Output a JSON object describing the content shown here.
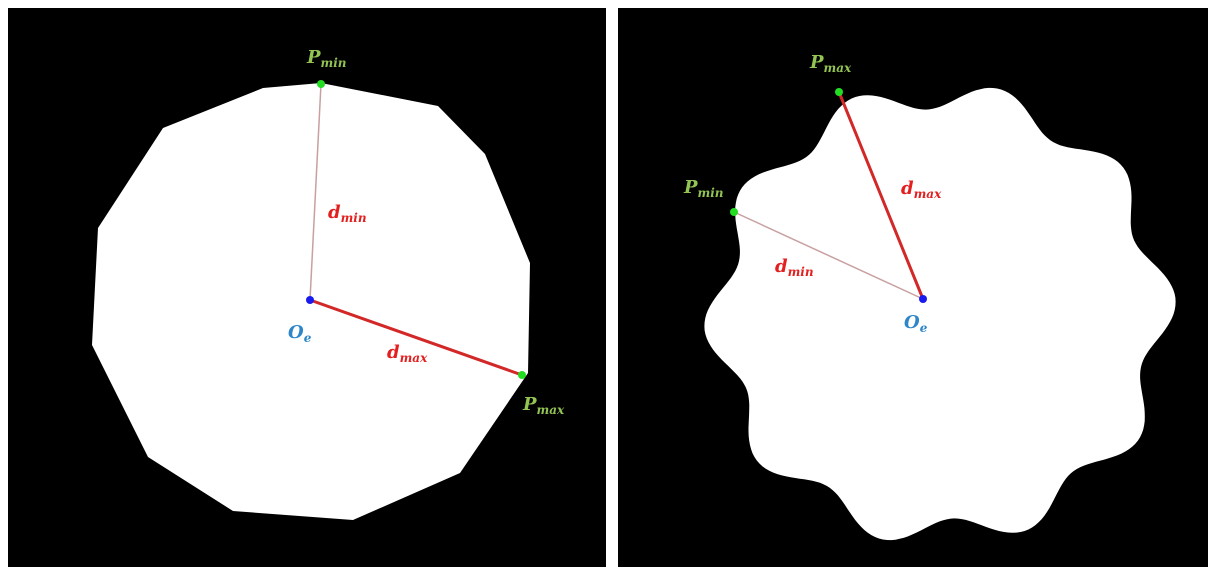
{
  "left": {
    "p_min_main": "P",
    "p_min_sub": "min",
    "p_max_main": "P",
    "p_max_sub": "max",
    "d_min_main": "d",
    "d_min_sub": "min",
    "d_max_main": "d",
    "d_max_sub": "max",
    "center_main": "O",
    "center_sub": "e"
  },
  "right": {
    "p_min_main": "P",
    "p_min_sub": "min",
    "p_max_main": "P",
    "p_max_sub": "max",
    "d_min_main": "d",
    "d_min_sub": "min",
    "d_max_main": "d",
    "d_max_sub": "max",
    "center_main": "O",
    "center_sub": "e"
  },
  "colors": {
    "background": "#000000",
    "shape": "#ffffff",
    "point_green": "#22dd22",
    "label_green": "#92c353",
    "line_red": "#d22828",
    "line_light": "#c8a0a0",
    "center_blue": "#1a1aee",
    "label_blue": "#2e86c9"
  }
}
